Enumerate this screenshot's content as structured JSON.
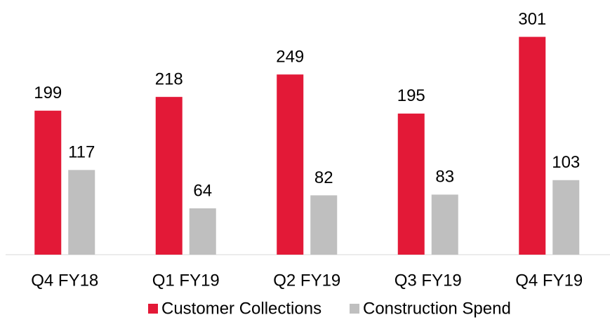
{
  "chart_data": {
    "type": "bar",
    "categories": [
      "Q4 FY18",
      "Q1 FY19",
      "Q2 FY19",
      "Q3 FY19",
      "Q4 FY19"
    ],
    "series": [
      {
        "name": "Customer Collections",
        "color": "#e31937",
        "values": [
          199,
          218,
          249,
          195,
          301
        ]
      },
      {
        "name": "Construction Spend",
        "color": "#bfbfbf",
        "values": [
          117,
          64,
          82,
          83,
          103
        ]
      }
    ],
    "ylim": [
      0,
      350
    ]
  }
}
